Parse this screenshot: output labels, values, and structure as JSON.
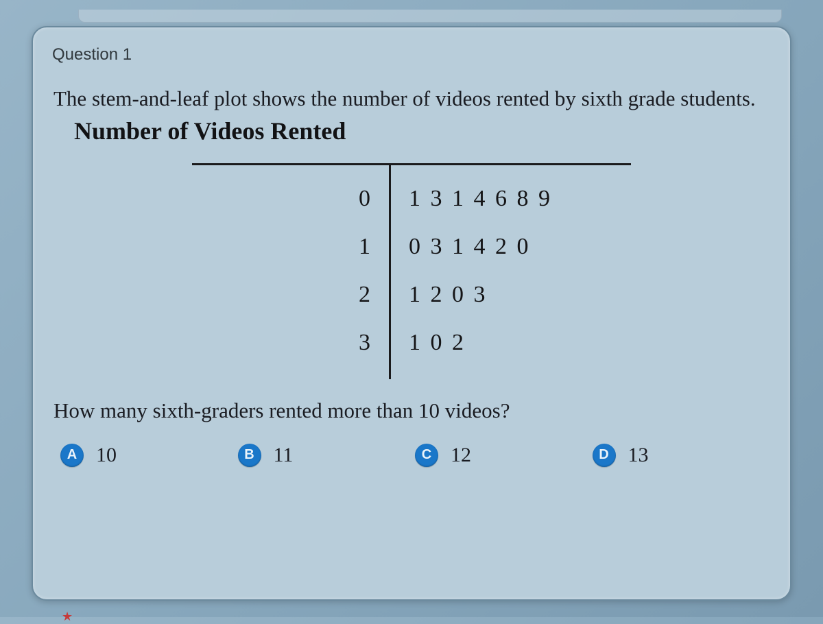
{
  "question_label": "Question 1",
  "prompt_text": "The stem-and-leaf plot shows the number of videos rented by sixth grade students.",
  "plot_title": "Number of Videos Rented",
  "stem_leaf": {
    "rows": [
      {
        "stem": "0",
        "leaves": "1 3 1 4 6 8 9"
      },
      {
        "stem": "1",
        "leaves": "0 3 1 4 2 0"
      },
      {
        "stem": "2",
        "leaves": "1 2 0 3"
      },
      {
        "stem": "3",
        "leaves": "1 0 2"
      }
    ],
    "rule_color": "#1a1a1c",
    "font_size": 34
  },
  "followup_question": "How many sixth-graders rented more than 10 videos?",
  "answers": [
    {
      "letter": "A",
      "text": "10"
    },
    {
      "letter": "B",
      "text": "11"
    },
    {
      "letter": "C",
      "text": "12"
    },
    {
      "letter": "D",
      "text": "13"
    }
  ],
  "colors": {
    "screen_bg_start": "#98b5c8",
    "screen_bg_end": "#7a9ab0",
    "card_bg": "#b8cdda",
    "card_border": "#6b8a9e",
    "text": "#1a1c22",
    "badge_bg": "#1a77c9",
    "badge_fg": "#eaf3fa",
    "star": "#c63a3a"
  }
}
